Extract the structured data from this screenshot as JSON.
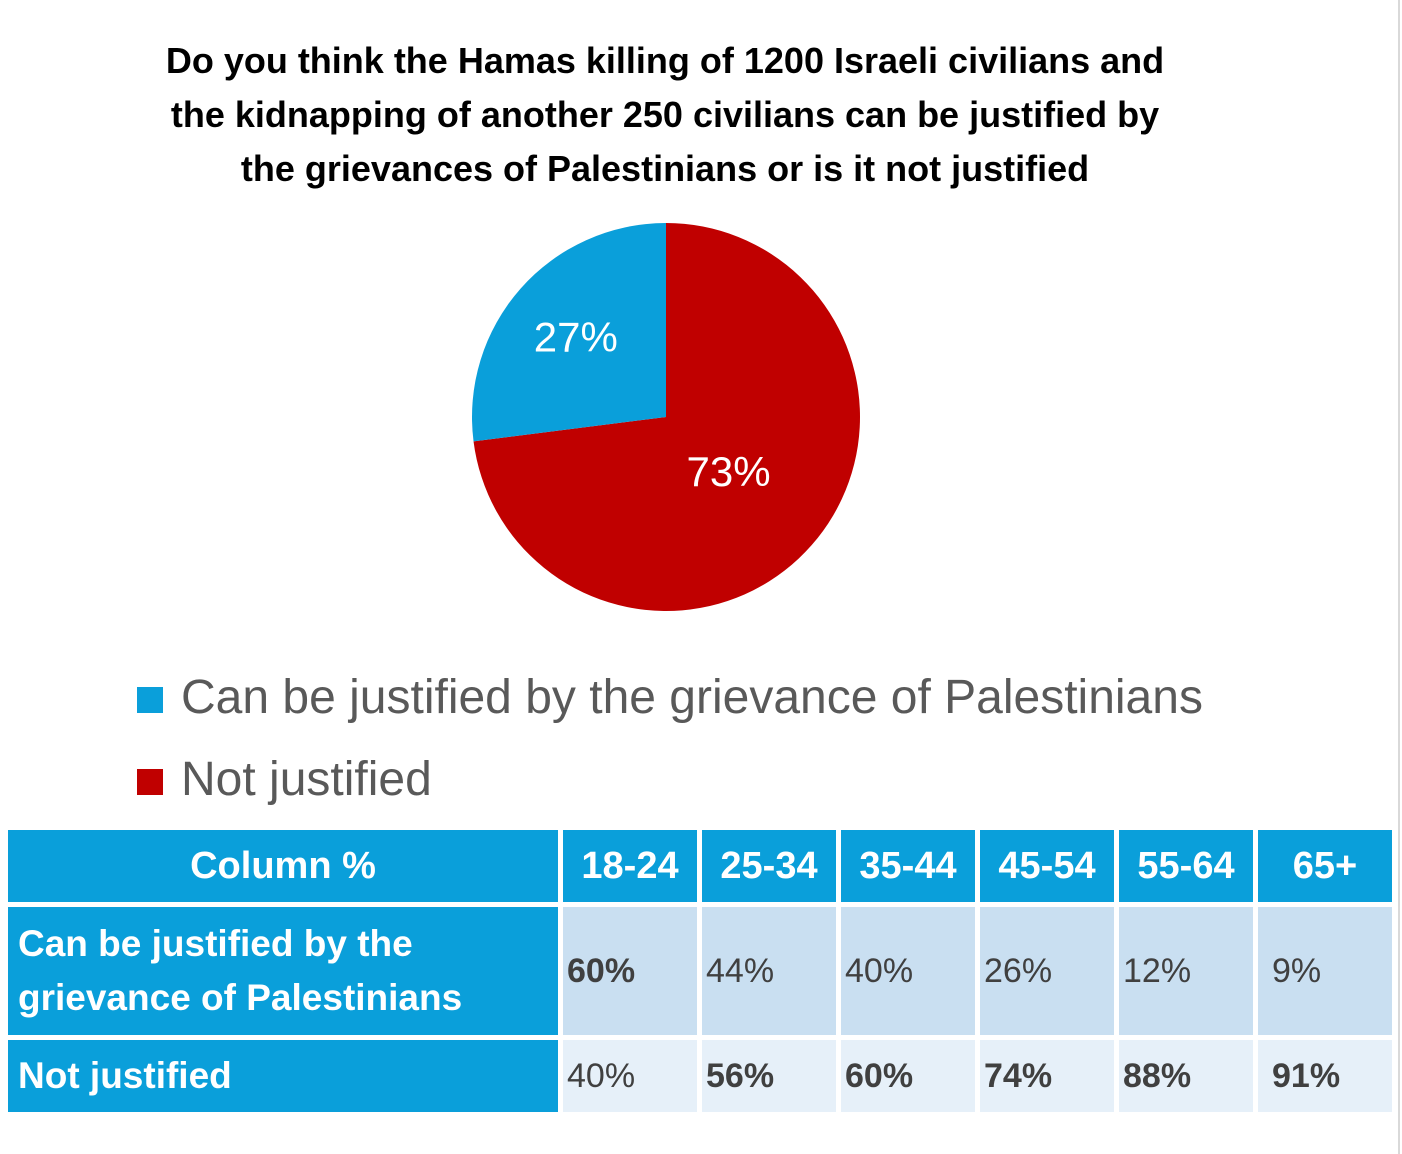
{
  "chart_data": {
    "type": "pie",
    "title_lines": [
      "Do you think the Hamas killing of 1200 Israeli civilians and",
      "the kidnapping of another 250 civilians can be justified by",
      "the grievances of Palestinians or is it not justified"
    ],
    "slices": [
      {
        "name": "Can be justified by the grievance of Palestinians",
        "value": 27,
        "label": "27%",
        "color": "#0a9fda"
      },
      {
        "name": "Not justified",
        "value": 73,
        "label": "73%",
        "color": "#c00000"
      }
    ],
    "legend_position": "bottom-left"
  },
  "table": {
    "corner": "Column %",
    "columns": [
      "18-24",
      "25-34",
      "35-44",
      "45-54",
      "55-64",
      "65+"
    ],
    "rows": [
      {
        "label_lines": [
          "Can be justified by the",
          "grievance of Palestinians"
        ],
        "values": [
          "60%",
          "44%",
          "40%",
          "26%",
          "12%",
          "9%"
        ],
        "bold": [
          true,
          false,
          false,
          false,
          false,
          false
        ]
      },
      {
        "label_lines": [
          "Not justified"
        ],
        "values": [
          "40%",
          "56%",
          "60%",
          "74%",
          "88%",
          "91%"
        ],
        "bold": [
          false,
          true,
          true,
          true,
          true,
          true
        ]
      }
    ],
    "colors": {
      "header": "#0a9fda",
      "row1": "#c9dff1",
      "row2": "#e6f0f9"
    }
  }
}
